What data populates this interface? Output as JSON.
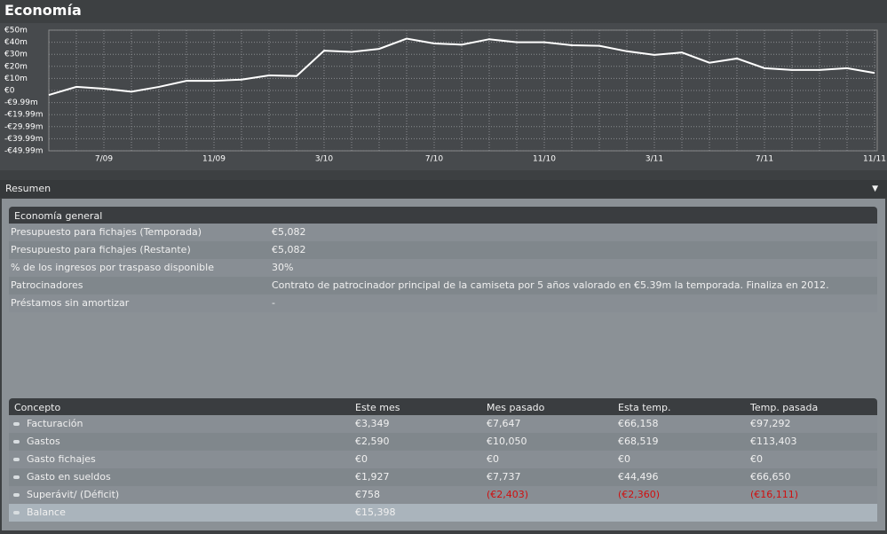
{
  "header": {
    "title": "Economía"
  },
  "chart_data": {
    "type": "line",
    "categories": [
      null,
      null,
      "7/09",
      null,
      null,
      null,
      "11/09",
      null,
      null,
      null,
      "3/10",
      null,
      null,
      null,
      "7/10",
      null,
      null,
      null,
      "11/10",
      null,
      null,
      null,
      "3/11",
      null,
      null,
      null,
      "7/11",
      null,
      null,
      null,
      "11/11"
    ],
    "values": [
      -3.7,
      3,
      1.5,
      -1,
      3,
      8,
      8,
      9,
      12.5,
      12,
      33,
      32,
      34.5,
      43,
      39,
      38,
      42.5,
      40,
      40,
      37.5,
      37,
      32.5,
      29.5,
      31.5,
      23,
      26.5,
      18.5,
      17,
      17,
      18.5,
      14.5
    ],
    "color": "#ffffff",
    "ylim": [
      -49.99,
      50
    ],
    "yticks": [
      {
        "value": 50,
        "label": "€50m"
      },
      {
        "value": 40,
        "label": "€40m"
      },
      {
        "value": 30,
        "label": "€30m"
      },
      {
        "value": 20,
        "label": "€20m"
      },
      {
        "value": 10,
        "label": "€10m"
      },
      {
        "value": 0,
        "label": "€0"
      },
      {
        "value": -9.99,
        "label": "-€9.99m"
      },
      {
        "value": -19.99,
        "label": "-€19.99m"
      },
      {
        "value": -29.99,
        "label": "-€29.99m"
      },
      {
        "value": -39.99,
        "label": "-€39.99m"
      },
      {
        "value": -49.99,
        "label": "-€49.99m"
      }
    ],
    "grid": true
  },
  "summary": {
    "title": "Resumen",
    "general": {
      "title": "Economía general",
      "rows": [
        [
          "Presupuesto para fichajes (Temporada)",
          "€5,082"
        ],
        [
          "Presupuesto para fichajes (Restante)",
          "€5,082"
        ],
        [
          "% de los ingresos por traspaso disponible",
          "30%"
        ],
        [
          "Patrocinadores",
          "Contrato de patrocinador principal de la camiseta por 5 años valorado en €5.39m la temporada. Finaliza en 2012."
        ],
        [
          "Préstamos sin amortizar",
          "-"
        ]
      ]
    },
    "table": {
      "columns": [
        "Concepto",
        "Este mes",
        "Mes pasado",
        "Esta temp.",
        "Temp. pasada"
      ],
      "rows": [
        [
          "Facturación",
          "€3,349",
          "€7,647",
          "€66,158",
          "€97,292"
        ],
        [
          "Gastos",
          "€2,590",
          "€10,050",
          "€68,519",
          "€113,403"
        ],
        [
          "Gasto fichajes",
          "€0",
          "€0",
          "€0",
          "€0"
        ],
        [
          "Gasto en sueldos",
          "€1,927",
          "€7,737",
          "€44,496",
          "€66,650"
        ],
        [
          "Superávit/ (Déficit)",
          "€758",
          "(€2,403)",
          "(€2,360)",
          "(€16,111)"
        ]
      ],
      "balance": [
        "Balance",
        "€15,398"
      ]
    }
  }
}
